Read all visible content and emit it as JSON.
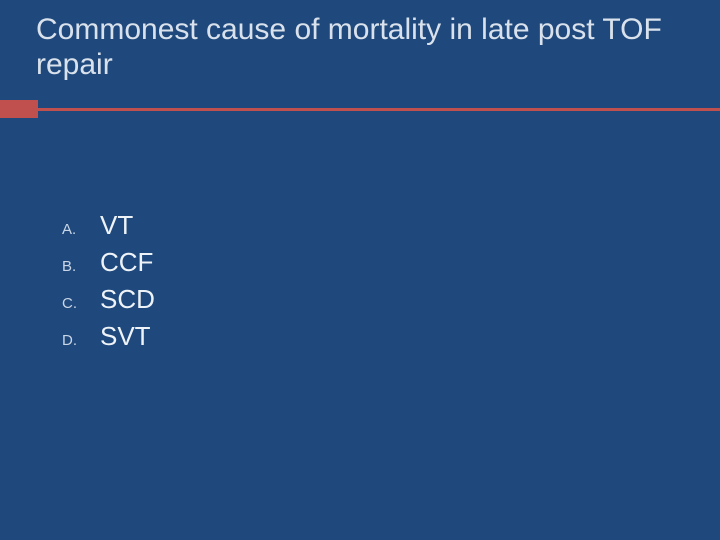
{
  "slide": {
    "background_color": "#1f497d",
    "accent_color": "#c0504d",
    "title_color": "#d9e2ec",
    "text_color": "#eef3f8",
    "letter_color": "#c9d6e6",
    "title_fontsize_pt": 30,
    "option_text_fontsize_pt": 26,
    "option_letter_fontsize_pt": 15,
    "title": "Commonest cause of mortality in late post TOF repair",
    "options": [
      {
        "letter": "A.",
        "text": "VT"
      },
      {
        "letter": "B.",
        "text": "CCF"
      },
      {
        "letter": "C.",
        "text": "SCD"
      },
      {
        "letter": "D.",
        "text": "SVT"
      }
    ]
  }
}
